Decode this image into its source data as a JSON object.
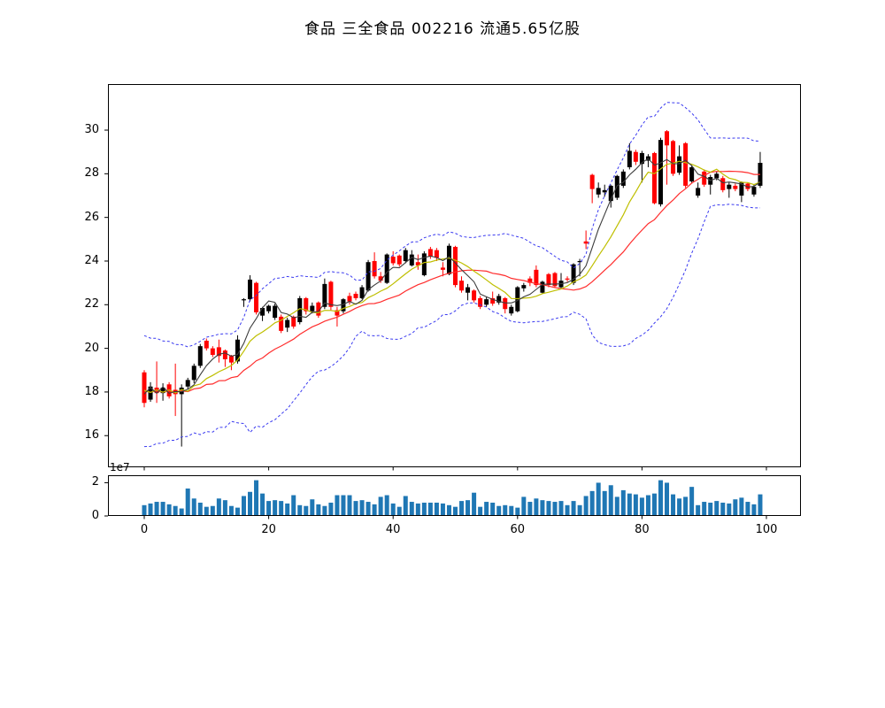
{
  "title": "食品 三全食品 002216 流通5.65亿股",
  "colors": {
    "candle_up": "#000000",
    "candle_down": "#ff0000",
    "ma_fast": "#3c3c3c",
    "ma_mid": "#bfbf00",
    "ma_slow": "#ff2d2d",
    "bollinger_band": "#3a3af0",
    "volume_bar": "#1f77b4",
    "spine": "#000000",
    "background": "#ffffff"
  },
  "axes": {
    "price_ticks": [
      30,
      28,
      26,
      24,
      22,
      20,
      18,
      16
    ],
    "x_ticks": [
      0,
      20,
      40,
      60,
      80,
      100
    ],
    "volume_ticks": [
      2,
      0
    ],
    "volume_offset_label": "1e7"
  },
  "chart_data": {
    "type": "candlestick",
    "title": "食品 三全食品 002216 流通5.65亿股",
    "xlabel": "",
    "ylabel": "",
    "x_range": [
      0,
      99
    ],
    "xlim": [
      -5.83,
      105.5
    ],
    "ylim": [
      14.55,
      32.11
    ],
    "volume_ylim": [
      0,
      24500000
    ],
    "legend": "none",
    "grid": false,
    "overlays": {
      "ma_windows": [
        5,
        10,
        20
      ],
      "bollinger_window": 20,
      "bollinger_mult": 2,
      "pre_pad_closes": [
        19.3,
        16.7,
        19.3,
        16.7,
        19.3,
        16.7,
        19.3,
        16.7,
        19.3,
        16.7,
        19.3,
        16.7,
        19.3,
        16.7,
        19.3,
        16.7,
        19.3,
        16.7,
        19.3
      ]
    },
    "candles_format": [
      "open",
      "high",
      "low",
      "close",
      "volume"
    ],
    "candles": [
      [
        18.9,
        19.0,
        17.3,
        17.5,
        6500000
      ],
      [
        17.65,
        18.45,
        17.55,
        18.25,
        7500000
      ],
      [
        18.2,
        19.4,
        17.5,
        17.95,
        8500000
      ],
      [
        17.95,
        18.4,
        17.6,
        18.2,
        8500000
      ],
      [
        18.35,
        18.45,
        17.7,
        17.8,
        7000000
      ],
      [
        18.1,
        19.3,
        16.9,
        17.9,
        6000000
      ],
      [
        17.9,
        18.35,
        15.5,
        18.2,
        4500000
      ],
      [
        18.25,
        18.65,
        18.1,
        18.55,
        16500000
      ],
      [
        18.55,
        19.3,
        18.4,
        19.2,
        10500000
      ],
      [
        19.2,
        20.2,
        19.1,
        20.1,
        8000000
      ],
      [
        20.35,
        20.45,
        19.9,
        20.0,
        5500000
      ],
      [
        20.0,
        20.1,
        19.6,
        19.7,
        6000000
      ],
      [
        20.05,
        20.4,
        19.35,
        19.65,
        10500000
      ],
      [
        19.9,
        19.95,
        19.15,
        19.5,
        9500000
      ],
      [
        19.65,
        19.7,
        19.0,
        19.35,
        6000000
      ],
      [
        19.4,
        20.6,
        19.3,
        20.4,
        5000000
      ],
      [
        22.2,
        22.3,
        21.9,
        22.25,
        12000000
      ],
      [
        22.25,
        23.35,
        22.15,
        23.15,
        14500000
      ],
      [
        23.0,
        23.05,
        21.55,
        21.65,
        21500000
      ],
      [
        21.5,
        21.9,
        21.25,
        21.85,
        13500000
      ],
      [
        21.7,
        22.0,
        21.6,
        21.95,
        9000000
      ],
      [
        21.4,
        22.05,
        21.3,
        21.95,
        9500000
      ],
      [
        21.45,
        21.55,
        20.7,
        20.8,
        9000000
      ],
      [
        20.95,
        21.4,
        20.75,
        21.3,
        7500000
      ],
      [
        21.45,
        21.5,
        20.9,
        21.0,
        12500000
      ],
      [
        21.2,
        22.4,
        21.1,
        22.3,
        6500000
      ],
      [
        22.3,
        22.35,
        21.55,
        21.7,
        6000000
      ],
      [
        21.7,
        22.1,
        21.6,
        21.95,
        10000000
      ],
      [
        22.1,
        22.15,
        21.4,
        21.5,
        7000000
      ],
      [
        21.9,
        23.2,
        21.8,
        22.95,
        6000000
      ],
      [
        23.05,
        23.1,
        21.75,
        21.9,
        8000000
      ],
      [
        21.75,
        21.9,
        21.0,
        21.5,
        12500000
      ],
      [
        21.7,
        22.3,
        21.6,
        22.25,
        12500000
      ],
      [
        22.4,
        22.55,
        22.0,
        22.15,
        12500000
      ],
      [
        22.5,
        22.6,
        22.2,
        22.3,
        9000000
      ],
      [
        22.3,
        22.9,
        22.25,
        22.8,
        9500000
      ],
      [
        22.65,
        24.05,
        22.6,
        23.95,
        8500000
      ],
      [
        24.0,
        24.4,
        23.2,
        23.3,
        7000000
      ],
      [
        23.3,
        23.5,
        23.0,
        23.1,
        11500000
      ],
      [
        23.0,
        24.35,
        22.95,
        24.3,
        12500000
      ],
      [
        24.2,
        24.45,
        23.8,
        23.9,
        7500000
      ],
      [
        24.25,
        24.3,
        23.75,
        23.85,
        5500000
      ],
      [
        24.0,
        24.6,
        23.9,
        24.5,
        12000000
      ],
      [
        23.8,
        24.5,
        23.75,
        24.3,
        8500000
      ],
      [
        23.95,
        24.3,
        23.6,
        23.8,
        7500000
      ],
      [
        23.35,
        24.45,
        23.3,
        24.35,
        8000000
      ],
      [
        24.55,
        24.65,
        24.1,
        24.2,
        8000000
      ],
      [
        24.5,
        24.6,
        24.0,
        24.15,
        8000000
      ],
      [
        23.7,
        23.95,
        23.3,
        23.6,
        7500000
      ],
      [
        23.4,
        24.8,
        23.35,
        24.7,
        6500000
      ],
      [
        24.65,
        24.7,
        22.8,
        22.9,
        5500000
      ],
      [
        23.1,
        23.3,
        22.55,
        22.65,
        9000000
      ],
      [
        22.55,
        22.95,
        22.2,
        22.8,
        9500000
      ],
      [
        22.65,
        22.7,
        22.1,
        22.2,
        14000000
      ],
      [
        22.3,
        22.4,
        21.8,
        21.9,
        5500000
      ],
      [
        22.0,
        22.35,
        21.9,
        22.25,
        8500000
      ],
      [
        22.3,
        22.6,
        21.95,
        22.05,
        8000000
      ],
      [
        22.1,
        22.5,
        22.0,
        22.4,
        6000000
      ],
      [
        22.3,
        22.35,
        21.6,
        21.8,
        6500000
      ],
      [
        21.6,
        22.0,
        21.5,
        21.9,
        6000000
      ],
      [
        21.7,
        22.85,
        21.65,
        22.8,
        5000000
      ],
      [
        22.75,
        23.0,
        22.6,
        22.9,
        11500000
      ],
      [
        23.2,
        23.3,
        22.85,
        23.0,
        8500000
      ],
      [
        23.6,
        23.8,
        22.8,
        22.9,
        10500000
      ],
      [
        22.55,
        23.1,
        22.5,
        23.05,
        9500000
      ],
      [
        23.4,
        23.45,
        22.8,
        22.9,
        9000000
      ],
      [
        23.45,
        23.5,
        22.8,
        22.85,
        8500000
      ],
      [
        22.8,
        23.45,
        22.75,
        23.1,
        9000000
      ],
      [
        23.2,
        23.3,
        23.05,
        23.15,
        6500000
      ],
      [
        23.0,
        23.9,
        22.9,
        23.85,
        9000000
      ],
      [
        23.95,
        24.1,
        23.3,
        24.0,
        6500000
      ],
      [
        24.9,
        25.4,
        24.55,
        24.8,
        12000000
      ],
      [
        27.95,
        28.0,
        26.65,
        27.3,
        15000000
      ],
      [
        27.05,
        27.6,
        26.9,
        27.35,
        20000000
      ],
      [
        27.15,
        27.5,
        26.95,
        27.25,
        15000000
      ],
      [
        26.75,
        27.5,
        26.45,
        27.45,
        18500000
      ],
      [
        26.9,
        27.95,
        26.8,
        27.9,
        11500000
      ],
      [
        27.45,
        28.2,
        27.35,
        28.1,
        15500000
      ],
      [
        28.3,
        29.4,
        28.2,
        29.05,
        13500000
      ],
      [
        29.0,
        29.1,
        28.4,
        28.55,
        13000000
      ],
      [
        28.45,
        29.05,
        27.6,
        28.95,
        11000000
      ],
      [
        28.6,
        28.9,
        28.3,
        28.8,
        12500000
      ],
      [
        28.95,
        29.0,
        26.6,
        26.65,
        13500000
      ],
      [
        26.6,
        29.65,
        26.5,
        29.55,
        21500000
      ],
      [
        29.95,
        30.0,
        27.5,
        29.3,
        20000000
      ],
      [
        29.5,
        29.55,
        27.9,
        28.0,
        13000000
      ],
      [
        28.05,
        29.3,
        27.95,
        28.8,
        10500000
      ],
      [
        29.4,
        29.45,
        27.35,
        27.45,
        11500000
      ],
      [
        27.65,
        28.4,
        27.55,
        28.3,
        17500000
      ],
      [
        27.0,
        27.6,
        26.9,
        27.35,
        6500000
      ],
      [
        28.1,
        28.2,
        27.4,
        27.5,
        8500000
      ],
      [
        27.5,
        27.95,
        27.05,
        27.85,
        8000000
      ],
      [
        27.8,
        28.1,
        27.7,
        28.0,
        9000000
      ],
      [
        27.8,
        27.9,
        27.15,
        27.25,
        8000000
      ],
      [
        27.3,
        27.6,
        26.9,
        27.5,
        7500000
      ],
      [
        27.45,
        27.55,
        27.2,
        27.3,
        10000000
      ],
      [
        27.0,
        27.65,
        26.7,
        27.6,
        11000000
      ],
      [
        27.55,
        27.6,
        27.2,
        27.3,
        8500000
      ],
      [
        27.05,
        27.5,
        26.95,
        27.4,
        7000000
      ],
      [
        27.45,
        29.0,
        27.35,
        28.5,
        13000000
      ]
    ]
  }
}
